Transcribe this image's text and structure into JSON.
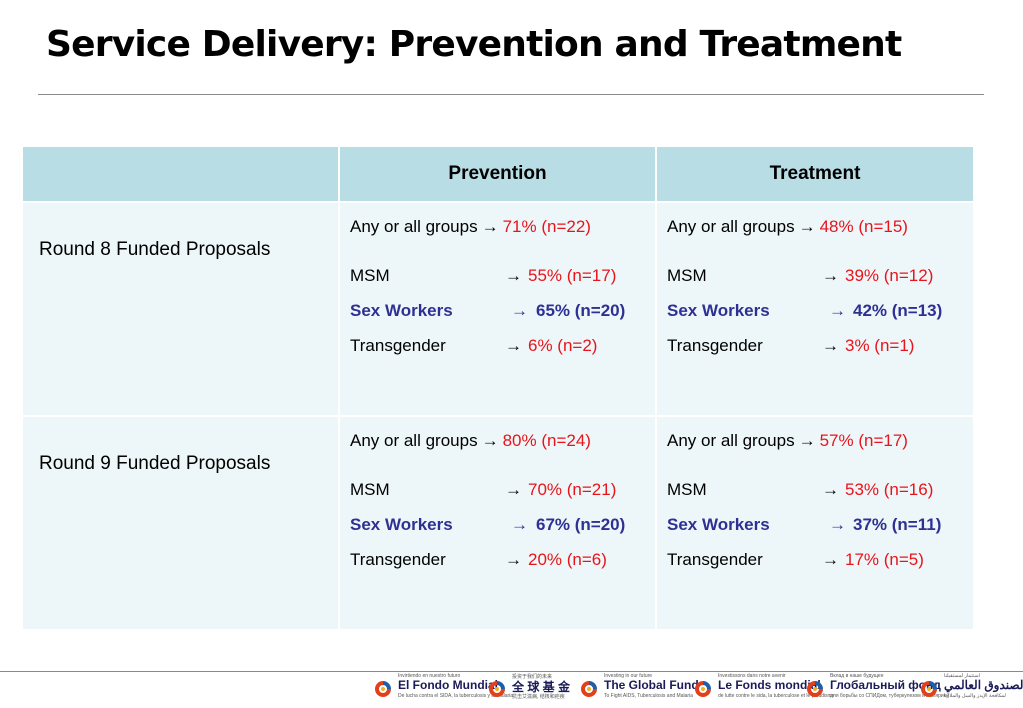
{
  "title": "Service Delivery: Prevention and Treatment",
  "table": {
    "headers": [
      "",
      "Prevention",
      "Treatment"
    ],
    "rows": [
      {
        "label": "Round 8 Funded Proposals",
        "prevention": [
          {
            "group": "Any or all groups",
            "arrow": "→",
            "value": "71% (n=22)"
          },
          {
            "group": "MSM",
            "arrow": "→",
            "value": "55% (n=17)"
          },
          {
            "group": "Sex Workers",
            "arrow": "→",
            "value": "65% (n=20)"
          },
          {
            "group": "Transgender",
            "arrow": "→",
            "value": "6%    (n=2)"
          }
        ],
        "treatment": [
          {
            "group": "Any or all groups",
            "arrow": "→",
            "value": "48% (n=15)"
          },
          {
            "group": "MSM",
            "arrow": "→",
            "value": "39% (n=12)"
          },
          {
            "group": "Sex Workers",
            "arrow": "→",
            "value": "42% (n=13)"
          },
          {
            "group": "Transgender",
            "arrow": "→",
            "value": "3% (n=1)"
          }
        ]
      },
      {
        "label": "Round 9 Funded Proposals",
        "prevention": [
          {
            "group": "Any or all groups",
            "arrow": "→",
            "value": "80% (n=24)"
          },
          {
            "group": "MSM",
            "arrow": "→",
            "value": "70% (n=21)"
          },
          {
            "group": "Sex Workers",
            "arrow": "→",
            "value": " 67% (n=20)"
          },
          {
            "group": "Transgender",
            "arrow": "→",
            "value": "20%  (n=6)"
          }
        ],
        "treatment": [
          {
            "group": "Any or all groups",
            "arrow": "→",
            "value": "57% (n=17)"
          },
          {
            "group": "MSM",
            "arrow": "→",
            "value": "53% (n=16)"
          },
          {
            "group": "Sex Workers",
            "arrow": "→",
            "value": " 37% (n=11)"
          },
          {
            "group": "Transgender",
            "arrow": "→",
            "value": "17%  (n=5)"
          }
        ]
      }
    ]
  },
  "footer": {
    "logos": [
      {
        "name": "El Fondo Mundial",
        "pre": "Invirtiendo en nuestro futuro",
        "sub": "De lucha contra el SIDA, la tuberculosis y la malaria"
      },
      {
        "name": "全 球 基 金",
        "pre": "投资于我们的未来",
        "sub": "抗击艾滋病, 结核和疟疾"
      },
      {
        "name": "The Global Fund",
        "pre": "Investing in our future",
        "sub": "To Fight AIDS, Tuberculosis and Malaria"
      },
      {
        "name": "Le Fonds mondial",
        "pre": "Investissons dans notre avenir",
        "sub": "de lutte contre le sida, la tuberculose et le paludisme"
      },
      {
        "name": "Глобальный фонд",
        "pre": "Вклад в наше будущее",
        "sub": "для борьбы со СПИДом, туберкулезом и малярией"
      },
      {
        "name": "الصندوق العالمي",
        "pre": "استثمار لمستقبلنا",
        "sub": "لمكافحة الإيدز والسل والملاريا"
      }
    ]
  },
  "colors": {
    "header_fill": "#b8dde5",
    "body_fill": "#edf6f8",
    "value_red": "#e8141b",
    "sex_workers_blue": "#2e3192"
  }
}
